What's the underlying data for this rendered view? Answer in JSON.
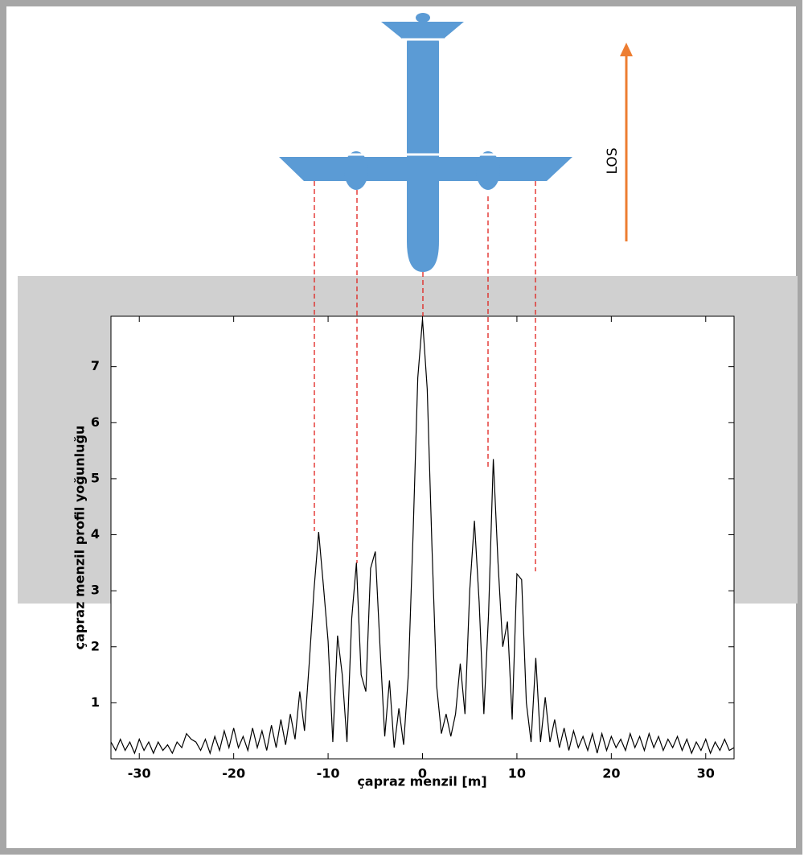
{
  "chart_data": {
    "type": "line",
    "annotation": "LOS",
    "xlabel": "çapraz menzil [m]",
    "ylabel": "çapraz menzil profil yoğunluğu",
    "xlim": [
      -33,
      33
    ],
    "ylim": [
      0,
      7.9
    ],
    "xticks": [
      -30,
      -20,
      -10,
      0,
      10,
      20,
      30
    ],
    "yticks": [
      1,
      2,
      3,
      4,
      5,
      6,
      7
    ],
    "color": "#000000",
    "x": [
      -33,
      -32.5,
      -32,
      -31.5,
      -31,
      -30.5,
      -30,
      -29.5,
      -29,
      -28.5,
      -28,
      -27.5,
      -27,
      -26.5,
      -26,
      -25.5,
      -25,
      -24.5,
      -24,
      -23.5,
      -23,
      -22.5,
      -22,
      -21.5,
      -21,
      -20.5,
      -20,
      -19.5,
      -19,
      -18.5,
      -18,
      -17.5,
      -17,
      -16.5,
      -16,
      -15.5,
      -15,
      -14.5,
      -14,
      -13.5,
      -13,
      -12.5,
      -12,
      -11.5,
      -11,
      -10.5,
      -10,
      -9.5,
      -9,
      -8.5,
      -8,
      -7.5,
      -7,
      -6.5,
      -6,
      -5.5,
      -5,
      -4.5,
      -4,
      -3.5,
      -3,
      -2.5,
      -2,
      -1.5,
      -1,
      -0.5,
      0,
      0.5,
      1,
      1.5,
      2,
      2.5,
      3,
      3.5,
      4,
      4.5,
      5,
      5.5,
      6,
      6.5,
      7,
      7.5,
      8,
      8.5,
      9,
      9.5,
      10,
      10.5,
      11,
      11.5,
      12,
      12.5,
      13,
      13.5,
      14,
      14.5,
      15,
      15.5,
      16,
      16.5,
      17,
      17.5,
      18,
      18.5,
      19,
      19.5,
      20,
      20.5,
      21,
      21.5,
      22,
      22.5,
      23,
      23.5,
      24,
      24.5,
      25,
      25.5,
      26,
      26.5,
      27,
      27.5,
      28,
      28.5,
      29,
      29.5,
      30,
      30.5,
      31,
      31.5,
      32,
      32.5,
      33
    ],
    "values": [
      0.3,
      0.15,
      0.35,
      0.15,
      0.3,
      0.1,
      0.35,
      0.15,
      0.3,
      0.1,
      0.3,
      0.15,
      0.25,
      0.1,
      0.3,
      0.2,
      0.45,
      0.35,
      0.3,
      0.15,
      0.35,
      0.1,
      0.4,
      0.15,
      0.5,
      0.2,
      0.55,
      0.2,
      0.4,
      0.15,
      0.55,
      0.2,
      0.5,
      0.15,
      0.6,
      0.2,
      0.7,
      0.25,
      0.8,
      0.35,
      1.2,
      0.5,
      1.7,
      3.0,
      4.05,
      3.1,
      2.1,
      0.3,
      2.2,
      1.5,
      0.3,
      2.5,
      3.5,
      1.5,
      1.2,
      3.4,
      3.7,
      2.0,
      0.4,
      1.4,
      0.2,
      0.9,
      0.25,
      1.5,
      4.0,
      6.8,
      7.85,
      6.6,
      3.8,
      1.3,
      0.45,
      0.8,
      0.4,
      0.8,
      1.7,
      0.8,
      3.0,
      4.25,
      2.8,
      0.8,
      2.6,
      5.35,
      3.5,
      2.0,
      2.45,
      0.7,
      3.3,
      3.2,
      1.0,
      0.3,
      1.8,
      0.3,
      1.1,
      0.3,
      0.7,
      0.2,
      0.55,
      0.15,
      0.5,
      0.2,
      0.4,
      0.15,
      0.45,
      0.1,
      0.45,
      0.15,
      0.4,
      0.2,
      0.35,
      0.15,
      0.45,
      0.2,
      0.4,
      0.15,
      0.45,
      0.2,
      0.4,
      0.15,
      0.35,
      0.2,
      0.4,
      0.15,
      0.35,
      0.1,
      0.3,
      0.15,
      0.35,
      0.1,
      0.3,
      0.15,
      0.35,
      0.15,
      0.2
    ]
  }
}
